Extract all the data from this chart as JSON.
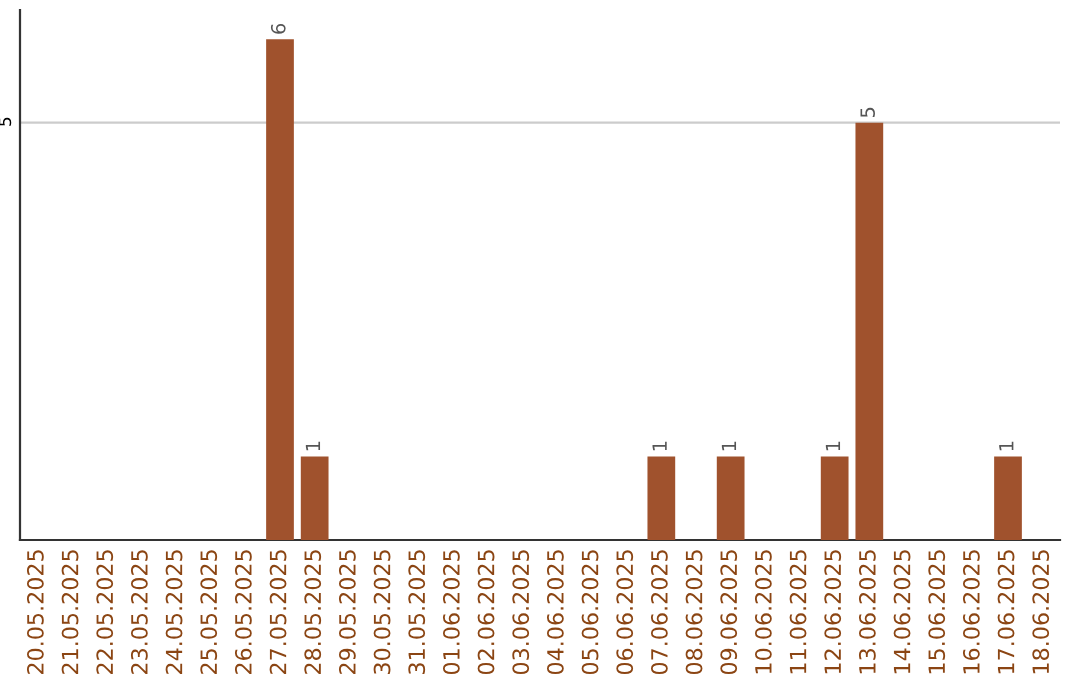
{
  "chart_data": {
    "type": "bar",
    "categories": [
      "20.05.2025",
      "21.05.2025",
      "22.05.2025",
      "23.05.2025",
      "24.05.2025",
      "25.05.2025",
      "26.05.2025",
      "27.05.2025",
      "28.05.2025",
      "29.05.2025",
      "30.05.2025",
      "31.05.2025",
      "01.06.2025",
      "02.06.2025",
      "03.06.2025",
      "04.06.2025",
      "05.06.2025",
      "06.06.2025",
      "07.06.2025",
      "08.06.2025",
      "09.06.2025",
      "10.06.2025",
      "11.06.2025",
      "12.06.2025",
      "13.06.2025",
      "14.06.2025",
      "15.06.2025",
      "16.06.2025",
      "17.06.2025",
      "18.06.2025"
    ],
    "values": [
      0,
      0,
      0,
      0,
      0,
      0,
      0,
      6,
      1,
      0,
      0,
      0,
      0,
      0,
      0,
      0,
      0,
      0,
      1,
      0,
      1,
      0,
      0,
      1,
      5,
      0,
      0,
      0,
      1,
      0
    ],
    "color": "#a0522d",
    "value_labels": [
      null,
      null,
      null,
      null,
      null,
      null,
      null,
      "6",
      "1",
      null,
      null,
      null,
      null,
      null,
      null,
      null,
      null,
      null,
      "1",
      null,
      "1",
      null,
      null,
      "1",
      "5",
      null,
      null,
      null,
      "1",
      null
    ],
    "ylim": [
      0,
      6.35
    ],
    "yticks": [
      5
    ],
    "grid": "y"
  }
}
